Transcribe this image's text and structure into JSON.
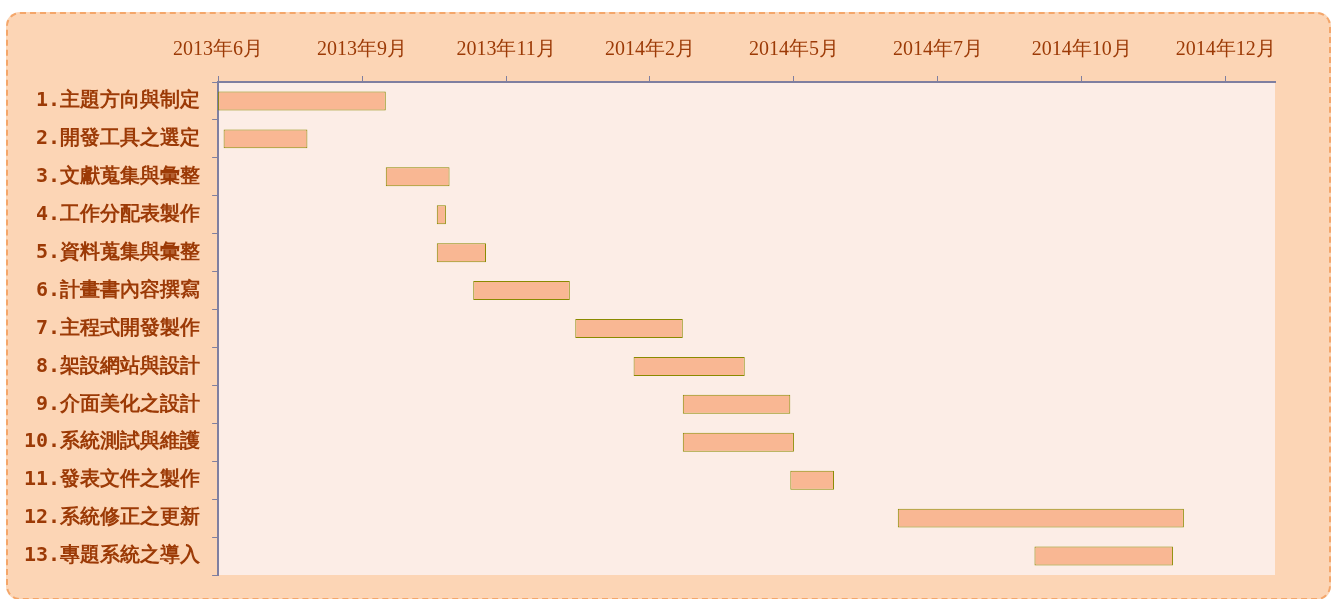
{
  "chart_data": {
    "type": "bar",
    "orientation": "horizontal",
    "categories": [
      "1.主題方向與制定",
      "2.開發工具之選定",
      "3.文獻蒐集與彙整",
      "4.工作分配表製作",
      "5.資料蒐集與彙整",
      "6.計畫書內容撰寫",
      "7.主程式開發製作",
      "8.架設網站與設計",
      "9.介面美化之設計",
      "10.系統測試與維護",
      "11.發表文件之製作",
      "12.系統修正之更新",
      "13.專題系統之導入"
    ],
    "base": [
      15881,
      15884,
      15973,
      16001,
      16001,
      16021,
      16077,
      16109,
      16136,
      16136,
      16195,
      16254,
      16329
    ],
    "values": [
      92,
      46,
      35,
      5,
      27,
      53,
      59,
      61,
      59,
      61,
      24,
      157,
      76
    ],
    "color": "#f9b793",
    "xlim": [
      "2013-06-25",
      "2015-01-26"
    ],
    "xticks": [
      {
        "value": "2013-06-25",
        "label": "2013年6月"
      },
      {
        "value": "2013-09-12",
        "label": "2013年9月"
      },
      {
        "value": "2013-11-30",
        "label": "2013年11月"
      },
      {
        "value": "2014-02-17",
        "label": "2014年2月"
      },
      {
        "value": "2014-05-07",
        "label": "2014年5月"
      },
      {
        "value": "2014-07-25",
        "label": "2014年7月"
      },
      {
        "value": "2014-10-12",
        "label": "2014年10月"
      },
      {
        "value": "2014-12-30",
        "label": "2014年12月"
      }
    ],
    "grid": false
  }
}
